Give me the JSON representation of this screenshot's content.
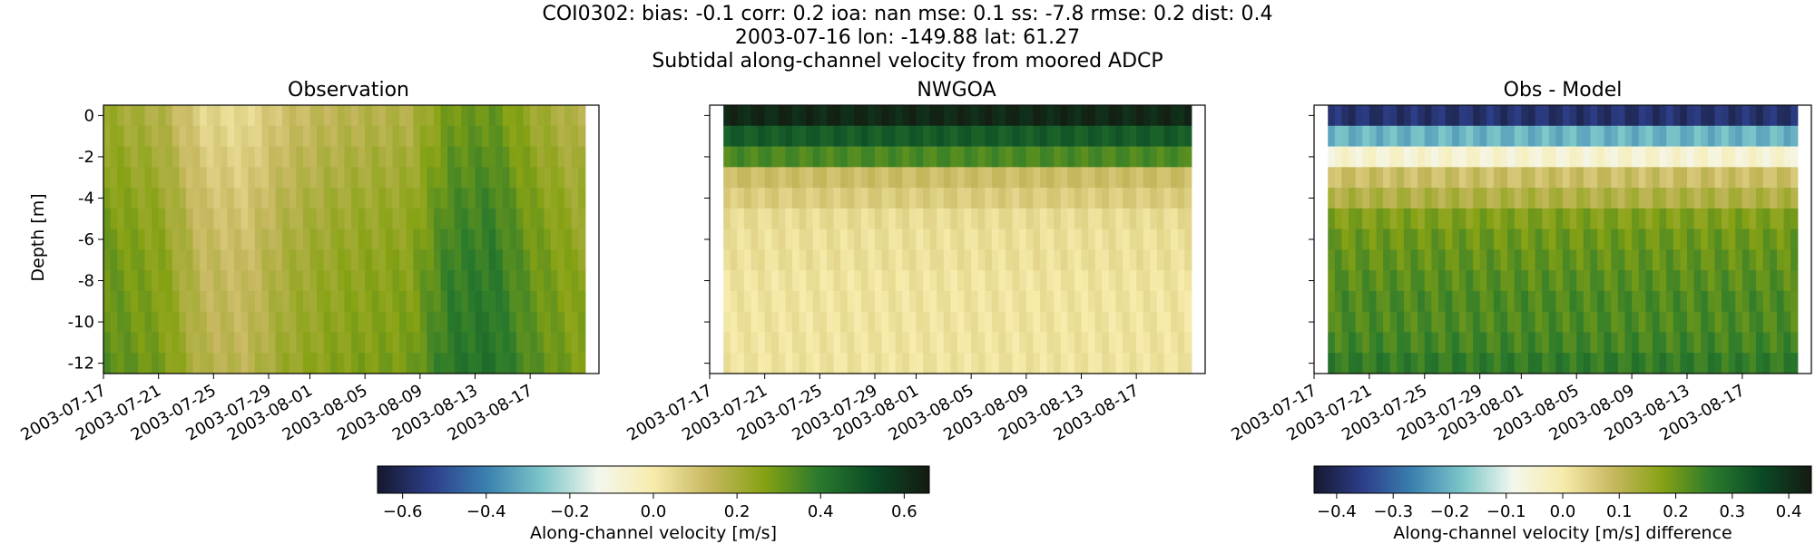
{
  "figure": {
    "title_lines": [
      "COI0302: bias: -0.1  corr: 0.2  ioa: nan  mse: 0.1  ss: -7.8  rmse: 0.2  dist: 0.4",
      "2003-07-16 lon: -149.88 lat: 61.27",
      "Subtidal along-channel velocity from moored ADCP"
    ]
  },
  "chart_data": [
    {
      "type": "heatmap",
      "title": "Observation",
      "xlabel": "",
      "ylabel": "Depth [m]",
      "x_ticks": [
        "2003-07-17",
        "2003-07-21",
        "2003-07-25",
        "2003-07-29",
        "2003-08-01",
        "2003-08-05",
        "2003-08-09",
        "2003-08-13",
        "2003-08-17"
      ],
      "y_ticks": [
        0,
        -2,
        -4,
        -6,
        -8,
        -10,
        -12
      ],
      "xlim": [
        "2003-07-17",
        "2003-08-22"
      ],
      "data_time_range": [
        "2003-07-17",
        "2003-08-21"
      ],
      "ylim": [
        -12.5,
        0.5
      ],
      "depth_bins": [
        0,
        -1,
        -2,
        -3,
        -4,
        -5,
        -6,
        -7,
        -8,
        -9,
        -10,
        -11,
        -12
      ],
      "time_values": {
        "2003-07-17": 0.3,
        "2003-07-21": 0.25,
        "2003-07-24": 0.12,
        "2003-07-27": 0.1,
        "2003-07-30": 0.18,
        "2003-08-02": 0.22,
        "2003-08-05": 0.24,
        "2003-08-08": 0.25,
        "2003-08-11": 0.38,
        "2003-08-14": 0.4,
        "2003-08-17": 0.3,
        "2003-08-20": 0.24
      },
      "depth_values": {
        "0": 0.08,
        "-1": 0.1,
        "-2": 0.13,
        "-3": 0.15,
        "-4": 0.18,
        "-5": 0.2,
        "-6": 0.22,
        "-7": 0.24,
        "-8": 0.25,
        "-9": 0.26,
        "-10": 0.27,
        "-11": 0.28,
        "-12": 0.3
      },
      "colorbar": "velocity"
    },
    {
      "type": "heatmap",
      "title": "NWGOA",
      "xlabel": "",
      "ylabel": "",
      "x_ticks": [
        "2003-07-17",
        "2003-07-21",
        "2003-07-25",
        "2003-07-29",
        "2003-08-01",
        "2003-08-05",
        "2003-08-09",
        "2003-08-13",
        "2003-08-17"
      ],
      "y_ticks": [
        0,
        -2,
        -4,
        -6,
        -8,
        -10,
        -12
      ],
      "xlim": [
        "2003-07-17",
        "2003-08-22"
      ],
      "data_time_range": [
        "2003-07-18",
        "2003-08-21"
      ],
      "ylim": [
        -12.5,
        0.5
      ],
      "depth_bins": [
        0,
        -1,
        -2,
        -3,
        -4,
        -5,
        -6,
        -7,
        -8,
        -9,
        -10,
        -11,
        -12
      ],
      "depth_values": {
        "0": 0.62,
        "-1": 0.48,
        "-2": 0.35,
        "-3": 0.12,
        "-4": 0.08,
        "-5": 0.04,
        "-6": 0.03,
        "-7": 0.03,
        "-8": 0.02,
        "-9": 0.02,
        "-10": 0.02,
        "-11": 0.02,
        "-12": 0.02
      },
      "colorbar": "velocity"
    },
    {
      "type": "heatmap",
      "title": "Obs - Model",
      "xlabel": "",
      "ylabel": "",
      "x_ticks": [
        "2003-07-17",
        "2003-07-21",
        "2003-07-25",
        "2003-07-29",
        "2003-08-01",
        "2003-08-05",
        "2003-08-09",
        "2003-08-13",
        "2003-08-17"
      ],
      "y_ticks": [
        0,
        -2,
        -4,
        -6,
        -8,
        -10,
        -12
      ],
      "xlim": [
        "2003-07-17",
        "2003-08-22"
      ],
      "data_time_range": [
        "2003-07-18",
        "2003-08-21"
      ],
      "ylim": [
        -12.5,
        0.5
      ],
      "depth_bins": [
        0,
        -1,
        -2,
        -3,
        -4,
        -5,
        -6,
        -7,
        -8,
        -9,
        -10,
        -11,
        -12
      ],
      "depth_values": {
        "0": -0.38,
        "-1": -0.2,
        "-2": -0.05,
        "-3": 0.08,
        "-4": 0.12,
        "-5": 0.18,
        "-6": 0.2,
        "-7": 0.21,
        "-8": 0.22,
        "-9": 0.23,
        "-10": 0.23,
        "-11": 0.24,
        "-12": 0.26
      },
      "colorbar": "difference"
    }
  ],
  "colorbars": {
    "velocity": {
      "label": "Along-channel velocity [m/s]",
      "range": [
        -0.66,
        0.66
      ],
      "ticks": [
        "-0.6",
        "-0.4",
        "-0.2",
        "0.0",
        "0.2",
        "0.4",
        "0.6"
      ]
    },
    "difference": {
      "label": "Along-channel velocity [m/s] difference",
      "range": [
        -0.44,
        0.44
      ],
      "ticks": [
        "-0.4",
        "-0.3",
        "-0.2",
        "-0.1",
        "0.0",
        "0.1",
        "0.2",
        "0.3",
        "0.4"
      ]
    }
  },
  "colormap": [
    "#16182f",
    "#2d3f8a",
    "#3b82b0",
    "#7ec7c9",
    "#f4f7ee",
    "#f7ebab",
    "#c7b860",
    "#87a214",
    "#2a7a2c",
    "#0b4a26",
    "#141a10"
  ]
}
